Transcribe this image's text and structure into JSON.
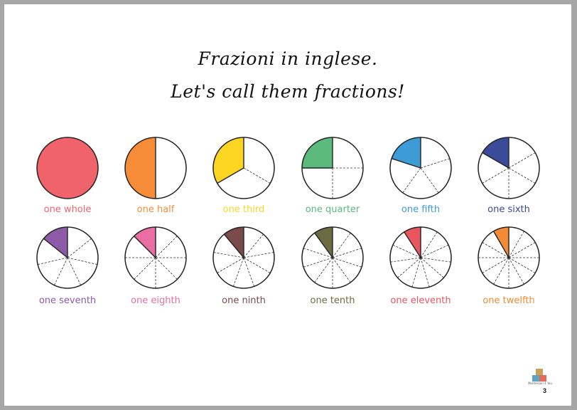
{
  "title_line1": "Frazioni in inglese.",
  "title_line2": "Let's call them fractions!",
  "fractions": [
    {
      "n": 1,
      "label": "one whole",
      "color": "#f0636b"
    },
    {
      "n": 2,
      "label": "one half",
      "color": "#f68c38"
    },
    {
      "n": 3,
      "label": "one third",
      "color": "#fcd523"
    },
    {
      "n": 4,
      "label": "one quarter",
      "color": "#5cba7d"
    },
    {
      "n": 5,
      "label": "one fifth",
      "color": "#3d9cd6"
    },
    {
      "n": 6,
      "label": "one sixth",
      "color": "#3a4b9a"
    },
    {
      "n": 7,
      "label": "one seventh",
      "color": "#8c5aa6"
    },
    {
      "n": 8,
      "label": "one eighth",
      "color": "#ea6da4"
    },
    {
      "n": 9,
      "label": "one ninth",
      "color": "#7b4a4a"
    },
    {
      "n": 10,
      "label": "one tenth",
      "color": "#6c6c42"
    },
    {
      "n": 11,
      "label": "one eleventh",
      "color": "#ea5560"
    },
    {
      "n": 12,
      "label": "one twelfth",
      "color": "#f28b34"
    }
  ],
  "logo": {
    "text": "Montessori 4 You",
    "icon": "stacked-blocks-logo"
  },
  "page_number": "3"
}
